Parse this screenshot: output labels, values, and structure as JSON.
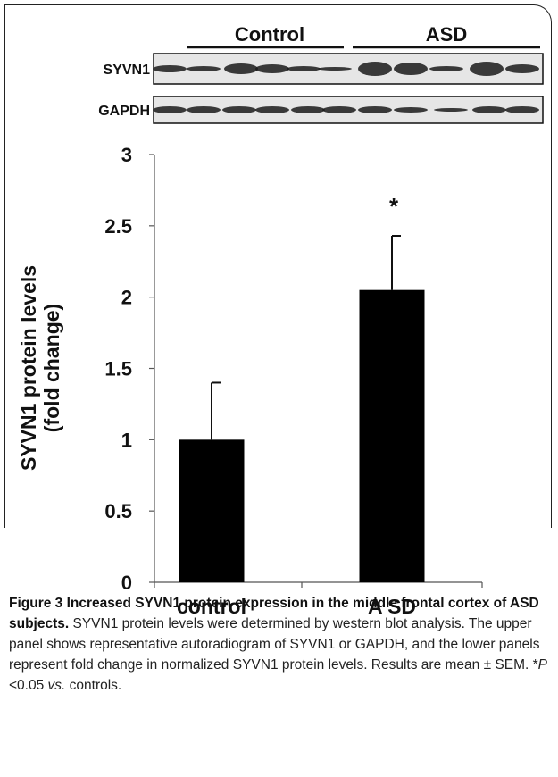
{
  "blot": {
    "groups": [
      "Control",
      "ASD"
    ],
    "rows": [
      "SYVN1",
      "GAPDH"
    ]
  },
  "chart_data": {
    "type": "bar",
    "y_label": "SYVN1 protein levels\n(fold change)",
    "categories": [
      "control",
      "A SD"
    ],
    "values": [
      1.0,
      2.05
    ],
    "errors": [
      0.4,
      0.38
    ],
    "color": "#000000",
    "ylim": [
      0,
      3
    ],
    "yticks": [
      0,
      0.5,
      1,
      1.5,
      2,
      2.5,
      3
    ],
    "annotations": [
      {
        "text": "*",
        "category": 1
      }
    ]
  },
  "caption": {
    "title": "Figure 3 Increased SYVN1 protein expression in the middle frontal cortex of ASD subjects.",
    "segments": [
      {
        "text": " SYVN1 protein levels were determined by western blot analysis. The upper panel shows representative autoradiogram of SYVN1 or GAPDH, and the lower panels represent fold change in normalized SYVN1 protein levels. Results are mean ± SEM. *",
        "italic": false
      },
      {
        "text": "P",
        "italic": true
      },
      {
        "text": " <0.05 ",
        "italic": false
      },
      {
        "text": "vs.",
        "italic": true
      },
      {
        "text": " controls.",
        "italic": false
      }
    ]
  }
}
